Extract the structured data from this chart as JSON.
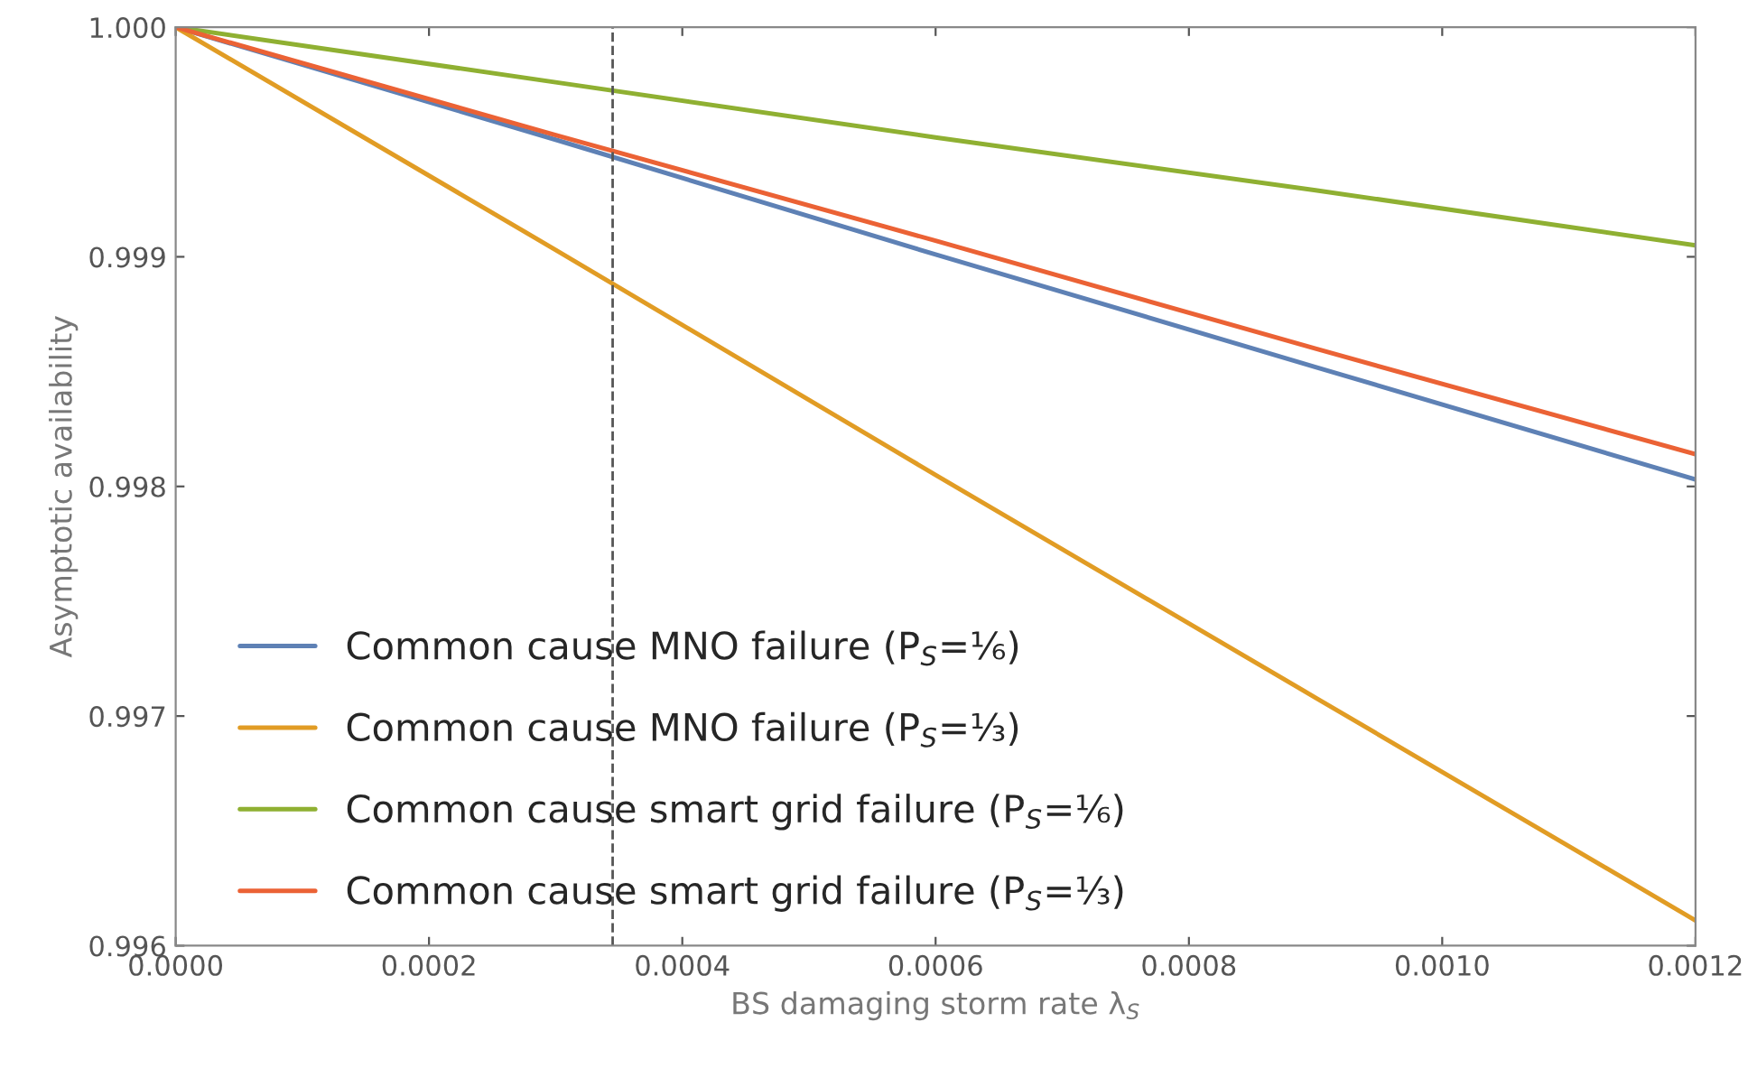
{
  "chart_data": {
    "type": "line",
    "xlabel": "BS damaging storm rate λ$_{S}$",
    "ylabel": "Asymptotic availability",
    "x": [
      0,
      0.0003,
      0.0006,
      0.0009,
      0.0012
    ],
    "series": [
      {
        "name": "Common cause MNO failure (P$_{S}$=⅙)",
        "color": "#5e81b5",
        "values": [
          1.0,
          0.99951,
          0.99901,
          0.99852,
          0.99803
        ]
      },
      {
        "name": "Common cause MNO failure (P$_{S}$=⅓)",
        "color": "#e19c24",
        "values": [
          1.0,
          0.99903,
          0.99805,
          0.99708,
          0.99611
        ]
      },
      {
        "name": "Common cause smart grid failure (P$_{S}$=⅙)",
        "color": "#8fb032",
        "values": [
          1.0,
          0.99976,
          0.99952,
          0.99929,
          0.99905
        ]
      },
      {
        "name": "Common cause smart grid failure (P$_{S}$=⅓)",
        "color": "#eb6235",
        "values": [
          1.0,
          0.99953,
          0.99907,
          0.9986,
          0.99814
        ]
      }
    ],
    "xlim": [
      0,
      0.0012
    ],
    "ylim": [
      0.996,
      1.0
    ],
    "xticks": [
      {
        "value": 0,
        "label": "0.0000"
      },
      {
        "value": 0.0002,
        "label": "0.0002"
      },
      {
        "value": 0.0004,
        "label": "0.0004"
      },
      {
        "value": 0.0006,
        "label": "0.0006"
      },
      {
        "value": 0.0008,
        "label": "0.0008"
      },
      {
        "value": 0.001,
        "label": "0.0010"
      },
      {
        "value": 0.0012,
        "label": "0.0012"
      }
    ],
    "yticks": [
      {
        "value": 0.996,
        "label": "0.996"
      },
      {
        "value": 0.997,
        "label": "0.997"
      },
      {
        "value": 0.998,
        "label": "0.998"
      },
      {
        "value": 0.999,
        "label": "0.999"
      },
      {
        "value": 1.0,
        "label": "1.000"
      }
    ],
    "ref_lines": [
      {
        "axis": "x",
        "value": 0.000345,
        "color": "#555555",
        "line_style": "dashed"
      }
    ],
    "legend": "lower left",
    "grid": false,
    "marker": "none",
    "line_style": "solid"
  }
}
